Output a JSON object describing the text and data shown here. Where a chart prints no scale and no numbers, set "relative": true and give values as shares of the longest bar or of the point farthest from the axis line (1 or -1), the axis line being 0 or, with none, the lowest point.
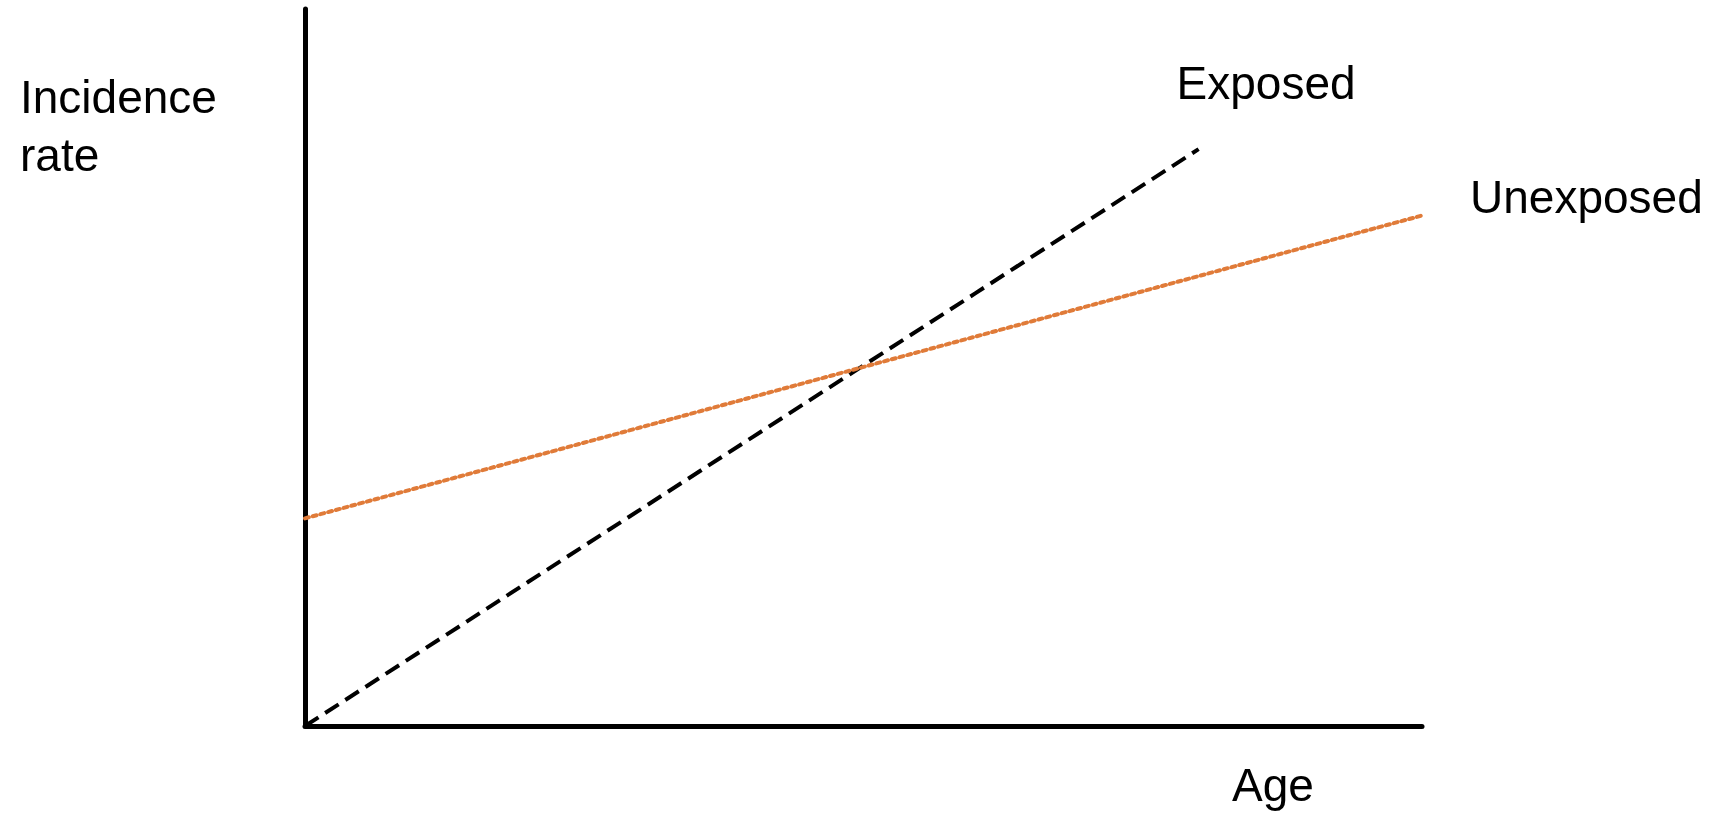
{
  "chart_data": {
    "type": "line",
    "relative": true,
    "xlabel": "Age",
    "ylabel": "Incidence rate",
    "categories": [
      null,
      null,
      null,
      null,
      null,
      null
    ],
    "series": [
      {
        "name": "Exposed",
        "color": "#000000",
        "line_style": "dashed",
        "values": [
          0,
          0.25,
          0.5,
          0.75,
          1,
          null
        ]
      },
      {
        "name": "Unexposed",
        "color": "#e07b39",
        "line_style": "dotted",
        "values": [
          0.36,
          0.465,
          0.57,
          0.675,
          0.78,
          0.885
        ]
      }
    ],
    "marker": "none",
    "grid": false,
    "legend": false
  }
}
